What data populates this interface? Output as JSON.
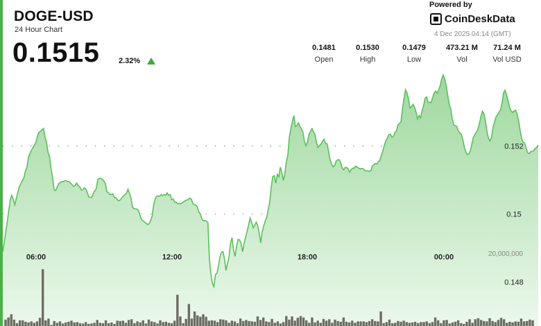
{
  "header": {
    "symbol": "DOGE-USD",
    "subtitle": "24 Hour Chart",
    "price": "0.1515",
    "change": "2.32%"
  },
  "brand": {
    "powered_by": "Powered by",
    "name": "CoinDeskData",
    "datetime": "4 Dec 2025 04:14 (GMT)"
  },
  "stats": [
    {
      "value": "0.1481",
      "label": "Open"
    },
    {
      "value": "0.1530",
      "label": "High"
    },
    {
      "value": "0.1479",
      "label": "Low"
    },
    {
      "value": "473.21 M",
      "label": "Vol"
    },
    {
      "value": "71.24 M",
      "label": "Vol USD"
    }
  ],
  "colors": {
    "line": "#5cbf5c",
    "fill_top": "#9fd89f",
    "fill_bottom": "#ecf8ec",
    "volume_bar": "#6d6d62",
    "accent": "#4ab04a"
  },
  "chart_data": {
    "type": "area",
    "x_ticks": [
      "06:00",
      "12:00",
      "18:00",
      "00:00"
    ],
    "y_ticks": [
      "0.148",
      "0.15",
      "0.152"
    ],
    "y_tick_values": [
      0.148,
      0.15,
      0.152
    ],
    "ylim": [
      0.1467,
      0.1543
    ],
    "volume_tick": "20,000,000",
    "volume_ylim": [
      0,
      21500000
    ],
    "grid": "dotted horizontal",
    "price": [
      0.14888,
      0.14917,
      0.14946,
      0.14978,
      0.15011,
      0.15043,
      0.15055,
      0.15042,
      0.15027,
      0.15046,
      0.15064,
      0.15081,
      0.15089,
      0.15099,
      0.15107,
      0.15126,
      0.15137,
      0.15166,
      0.15178,
      0.15188,
      0.15195,
      0.15203,
      0.15211,
      0.1523,
      0.1524,
      0.15244,
      0.15248,
      0.15252,
      0.15227,
      0.15211,
      0.15181,
      0.1517,
      0.15132,
      0.1511,
      0.15071,
      0.15069,
      0.15079,
      0.15089,
      0.15092,
      0.15095,
      0.15095,
      0.15098,
      0.15098,
      0.15096,
      0.15095,
      0.15091,
      0.15086,
      0.15081,
      0.15084,
      0.15091,
      0.15084,
      0.1508,
      0.15071,
      0.15071,
      0.15077,
      0.15074,
      0.15064,
      0.1505,
      0.15049,
      0.15049,
      0.15061,
      0.15068,
      0.15075,
      0.15102,
      0.15105,
      0.15105,
      0.15102,
      0.15097,
      0.1509,
      0.15066,
      0.15063,
      0.15057,
      0.15058,
      0.15059,
      0.15048,
      0.15048,
      0.15042,
      0.15039,
      0.15042,
      0.15048,
      0.15053,
      0.15057,
      0.15061,
      0.15073,
      0.15061,
      0.15048,
      0.1502,
      0.15016,
      0.15015,
      0.15014,
      0.1501,
      0.14996,
      0.14983,
      0.1498,
      0.14976,
      0.14973,
      0.14969,
      0.14971,
      0.14981,
      0.14993,
      0.15026,
      0.15044,
      0.15052,
      0.15053,
      0.15052,
      0.15057,
      0.15054,
      0.15057,
      0.15055,
      0.15062,
      0.15055,
      0.15057,
      0.15042,
      0.15044,
      0.15034,
      0.15035,
      0.1503,
      0.15031,
      0.1503,
      0.15033,
      0.15036,
      0.15039,
      0.15041,
      0.15043,
      0.15047,
      0.15044,
      0.15031,
      0.15027,
      0.15026,
      0.15021,
      0.15006,
      0.15,
      0.14985,
      0.1498,
      0.14981,
      0.14979,
      0.14975,
      0.14867,
      0.14822,
      0.14795,
      0.14786,
      0.14822,
      0.14825,
      0.14847,
      0.14874,
      0.14887,
      0.14889,
      0.14867,
      0.14834,
      0.14854,
      0.14874,
      0.14914,
      0.1493,
      0.14894,
      0.14875,
      0.14905,
      0.14925,
      0.14924,
      0.14913,
      0.14889,
      0.14913,
      0.14932,
      0.14949,
      0.14968,
      0.14988,
      0.14975,
      0.14959,
      0.14966,
      0.14976,
      0.14966,
      0.14944,
      0.14915,
      0.14947,
      0.14965,
      0.14979,
      0.14991,
      0.15013,
      0.15037,
      0.15079,
      0.1511,
      0.15113,
      0.15091,
      0.15117,
      0.15109,
      0.15138,
      0.15123,
      0.15099,
      0.15118,
      0.15154,
      0.15174,
      0.15226,
      0.15251,
      0.15273,
      0.1529,
      0.15258,
      0.1526,
      0.15268,
      0.15258,
      0.15251,
      0.15241,
      0.15214,
      0.15201,
      0.15212,
      0.15234,
      0.15243,
      0.15251,
      0.15242,
      0.15234,
      0.1521,
      0.15196,
      0.15201,
      0.15206,
      0.15214,
      0.1522,
      0.15207,
      0.15207,
      0.15185,
      0.1516,
      0.15147,
      0.15139,
      0.15142,
      0.15156,
      0.15159,
      0.1516,
      0.15152,
      0.15136,
      0.1513,
      0.15137,
      0.15137,
      0.15133,
      0.15123,
      0.15131,
      0.15135,
      0.15135,
      0.15141,
      0.15138,
      0.15135,
      0.15133,
      0.15134,
      0.15133,
      0.15128,
      0.15127,
      0.15127,
      0.15126,
      0.15127,
      0.15141,
      0.15145,
      0.15149,
      0.15147,
      0.15154,
      0.15158,
      0.15173,
      0.15186,
      0.15203,
      0.15216,
      0.15224,
      0.15233,
      0.15235,
      0.15226,
      0.15229,
      0.1524,
      0.15245,
      0.15262,
      0.15267,
      0.15271,
      0.1531,
      0.15339,
      0.15366,
      0.15357,
      0.15339,
      0.15312,
      0.15316,
      0.15323,
      0.15314,
      0.153,
      0.1528,
      0.1529,
      0.15283,
      0.15305,
      0.15319,
      0.15341,
      0.15345,
      0.15329,
      0.15329,
      0.15328,
      0.15343,
      0.15357,
      0.15362,
      0.15356,
      0.15365,
      0.15378,
      0.15398,
      0.15409,
      0.15398,
      0.15378,
      0.1535,
      0.15322,
      0.1531,
      0.15281,
      0.15262,
      0.1526,
      0.15258,
      0.15245,
      0.15239,
      0.15235,
      0.1522,
      0.15196,
      0.15183,
      0.15175,
      0.15177,
      0.15186,
      0.15206,
      0.15226,
      0.15234,
      0.15241,
      0.15249,
      0.15267,
      0.15287,
      0.15303,
      0.15296,
      0.15273,
      0.15243,
      0.15223,
      0.15215,
      0.15225,
      0.15254,
      0.15271,
      0.15286,
      0.15292,
      0.153,
      0.15307,
      0.15326,
      0.15357,
      0.15365,
      0.15351,
      0.15334,
      0.15314,
      0.15304,
      0.15299,
      0.15303,
      0.15306,
      0.15295,
      0.15275,
      0.15246,
      0.15223,
      0.15211,
      0.15209,
      0.15194,
      0.1518,
      0.15178,
      0.15184,
      0.15184,
      0.15187,
      0.15193,
      0.15196,
      0.15203
    ],
    "volume": [
      1800000,
      2400000,
      3300000,
      1800000,
      800000,
      1600000,
      1600000,
      1200000,
      1000000,
      1300000,
      900000,
      1300000,
      2300000,
      16000000,
      1600000,
      2100000,
      300000,
      1400000,
      900000,
      1300000,
      700000,
      1000000,
      1200000,
      1500000,
      1000000,
      1100000,
      800000,
      700000,
      1100000,
      600000,
      700000,
      900000,
      1700000,
      900000,
      800000,
      1600000,
      800000,
      1000000,
      600000,
      1500000,
      1400000,
      1500000,
      900000,
      1700000,
      1900000,
      800000,
      1300000,
      1000000,
      1600000,
      700000,
      1800000,
      1300000,
      1100000,
      700000,
      1600000,
      1100000,
      1200000,
      900000,
      800000,
      1500000,
      8800000,
      2700000,
      800000,
      2000000,
      6200000,
      2100000,
      4100000,
      3000000,
      2600000,
      3300000,
      2600000,
      1500000,
      1600000,
      1500000,
      1100000,
      1900000,
      1800000,
      1600000,
      900000,
      1500000,
      1300000,
      800000,
      2100000,
      1400000,
      1700000,
      1400000,
      1300000,
      1200000,
      2700000,
      1700000,
      2400000,
      1300000,
      1100000,
      2000000,
      900000,
      1300000,
      700000,
      1100000,
      2800000,
      1800000,
      2700000,
      1500000,
      2300000,
      2800000,
      2400000,
      1600000,
      900000,
      2400000,
      1000000,
      1500000,
      900000,
      2000000,
      1500000,
      1900000,
      900000,
      1800000,
      1400000,
      1200000,
      2400000,
      1200000,
      1000000,
      1500000,
      900000,
      1300000,
      1300000,
      1300000,
      1100000,
      1400000,
      1900000,
      1400000,
      1300000,
      4100000,
      800000,
      1100000,
      1800000,
      800000,
      900000,
      1400000,
      1200000,
      1500000,
      1100000,
      900000,
      1000000,
      1200000,
      800000,
      1100000,
      1100000,
      1300000,
      800000,
      1100000,
      2400000,
      1600000,
      800000,
      1600000,
      1700000,
      700000,
      1000000,
      1200000,
      1600000,
      800000,
      600000,
      1200000,
      1900000,
      900000,
      1900000,
      2200000,
      1700000,
      1400000,
      1300000,
      2200000,
      1400000,
      1100000,
      1700000,
      2300000,
      1900000,
      900000,
      1200000,
      1000000,
      1300000,
      1200000,
      2100000,
      1300000,
      1400000,
      1800000,
      1600000
    ]
  }
}
